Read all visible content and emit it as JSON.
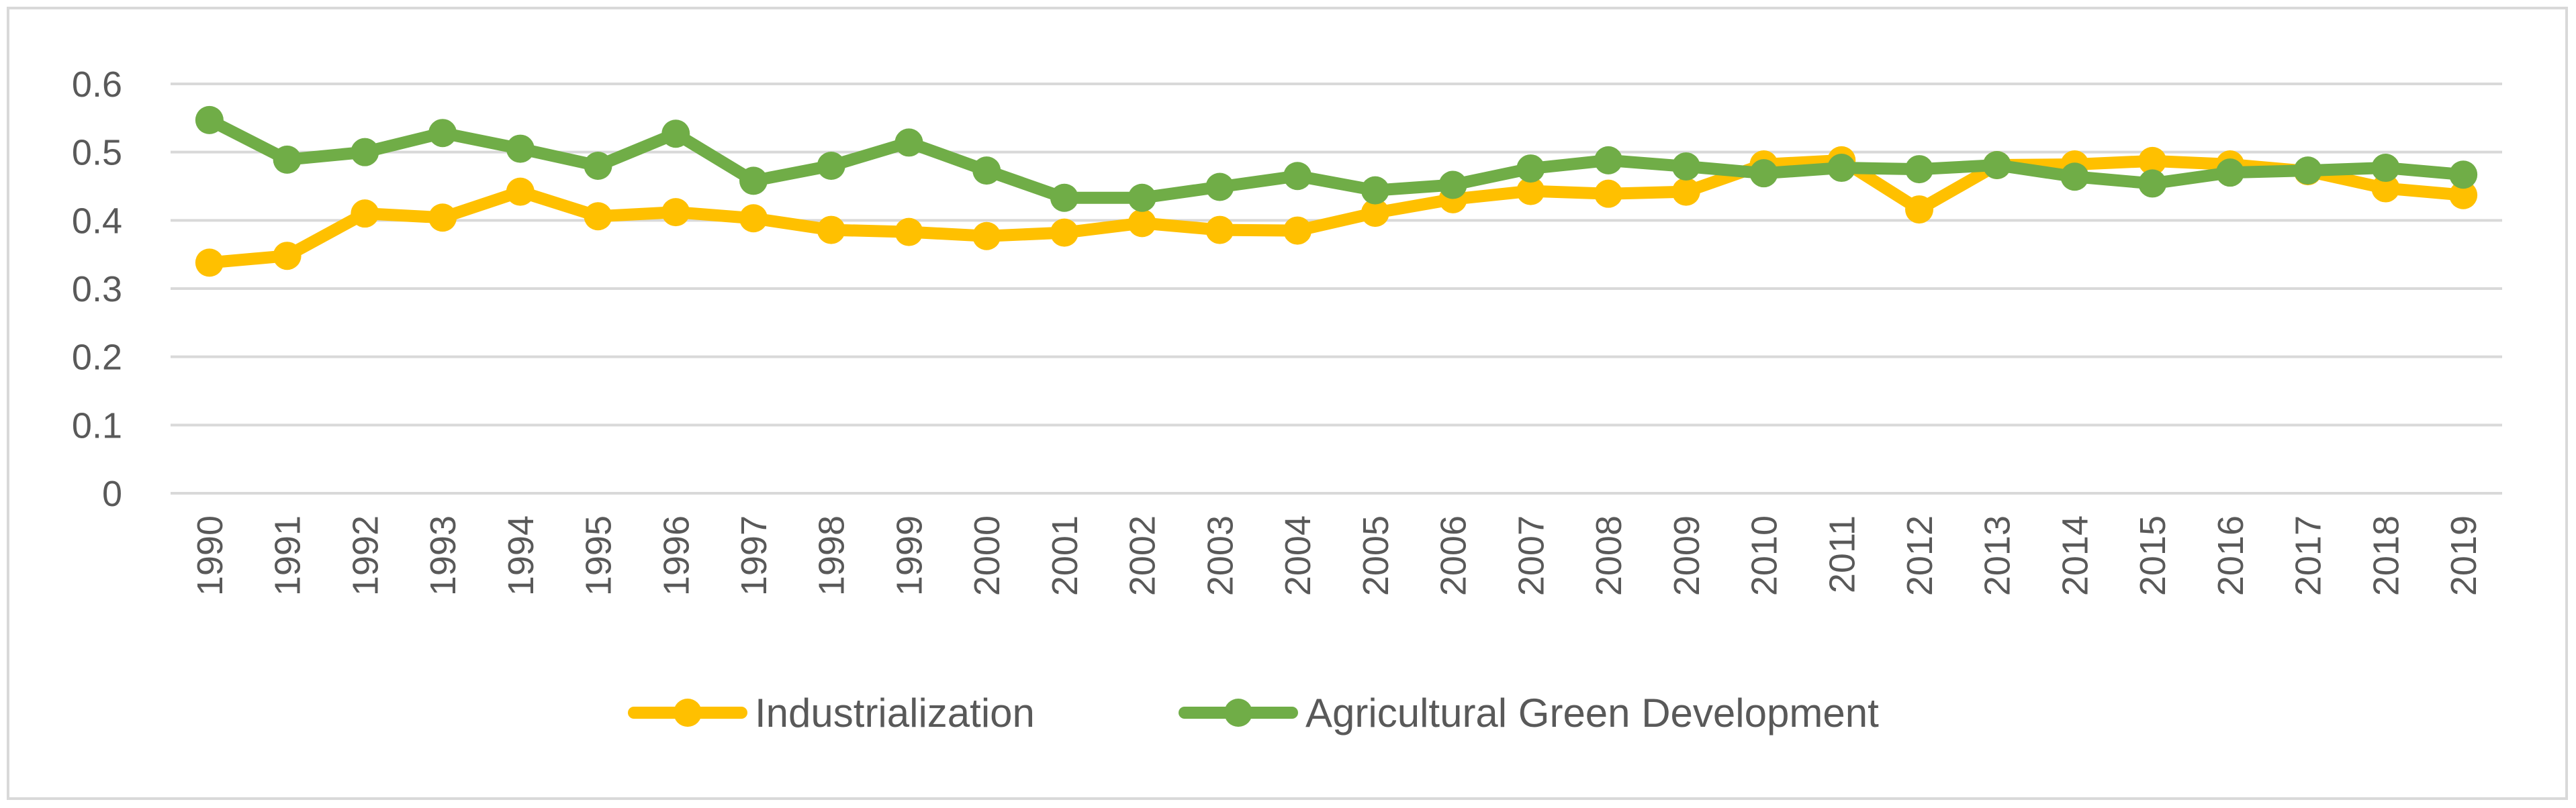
{
  "chart_data": {
    "type": "line",
    "title": "",
    "xlabel": "",
    "ylabel": "",
    "ylim": [
      0,
      0.6
    ],
    "y_ticks": [
      "0",
      "0.1",
      "0.2",
      "0.3",
      "0.4",
      "0.5",
      "0.6"
    ],
    "grid": true,
    "legend_position": "bottom",
    "categories": [
      "1990",
      "1991",
      "1992",
      "1993",
      "1994",
      "1995",
      "1996",
      "1997",
      "1998",
      "1999",
      "2000",
      "2001",
      "2002",
      "2003",
      "2004",
      "2005",
      "2006",
      "2007",
      "2008",
      "2009",
      "2010",
      "2011",
      "2012",
      "2013",
      "2014",
      "2015",
      "2016",
      "2017",
      "2018",
      "2019"
    ],
    "series": [
      {
        "name": "Industrialization",
        "color": "#FFC000",
        "values": [
          0.338,
          0.348,
          0.41,
          0.404,
          0.442,
          0.406,
          0.412,
          0.403,
          0.386,
          0.383,
          0.377,
          0.382,
          0.396,
          0.386,
          0.385,
          0.411,
          0.431,
          0.443,
          0.439,
          0.442,
          0.482,
          0.488,
          0.416,
          0.481,
          0.482,
          0.487,
          0.482,
          0.472,
          0.447,
          0.437
        ]
      },
      {
        "name": "Agricultural Green Development",
        "color": "#70AD47",
        "values": [
          0.547,
          0.489,
          0.5,
          0.528,
          0.505,
          0.48,
          0.527,
          0.458,
          0.48,
          0.514,
          0.473,
          0.433,
          0.433,
          0.449,
          0.465,
          0.444,
          0.452,
          0.476,
          0.488,
          0.479,
          0.469,
          0.477,
          0.475,
          0.481,
          0.464,
          0.454,
          0.47,
          0.473,
          0.477,
          0.467
        ]
      }
    ]
  }
}
